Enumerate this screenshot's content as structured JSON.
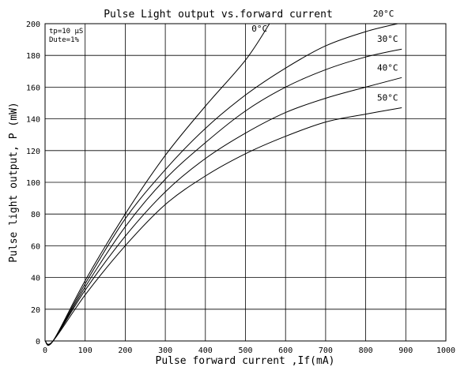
{
  "chart_data": {
    "type": "line",
    "title": "Pulse Light output vs.forward current",
    "xlabel": "Pulse forward current ,If(mA)",
    "ylabel": "Pulse light output, P (mW)",
    "xlim": [
      0,
      1000
    ],
    "ylim": [
      0,
      200
    ],
    "x_ticks": [
      0,
      100,
      200,
      300,
      400,
      500,
      600,
      700,
      800,
      900,
      1000
    ],
    "y_ticks": [
      0,
      20,
      40,
      60,
      80,
      100,
      120,
      140,
      160,
      180,
      200
    ],
    "grid": true,
    "conditions": [
      "tp=10 µS",
      "Dute=1%"
    ],
    "series": [
      {
        "name": "0°C",
        "color": "#000000",
        "x": [
          0,
          20,
          100,
          200,
          300,
          400,
          500,
          560
        ],
        "y": [
          0,
          0,
          38,
          80,
          117,
          148,
          177,
          200
        ]
      },
      {
        "name": "20°C",
        "color": "#000000",
        "x": [
          0,
          20,
          100,
          200,
          300,
          400,
          500,
          600,
          700,
          800,
          880
        ],
        "y": [
          0,
          0,
          36,
          77,
          108,
          134,
          155,
          172,
          186,
          195,
          200
        ]
      },
      {
        "name": "30°C",
        "color": "#000000",
        "x": [
          0,
          20,
          100,
          200,
          300,
          400,
          500,
          600,
          700,
          800,
          890
        ],
        "y": [
          0,
          0,
          34,
          72,
          102,
          125,
          145,
          160,
          171,
          179,
          184
        ]
      },
      {
        "name": "40°C",
        "color": "#000000",
        "x": [
          0,
          20,
          100,
          200,
          300,
          400,
          500,
          600,
          700,
          800,
          890
        ],
        "y": [
          0,
          0,
          32,
          66,
          94,
          115,
          131,
          144,
          153,
          160,
          166
        ]
      },
      {
        "name": "50°C",
        "color": "#000000",
        "x": [
          0,
          20,
          100,
          200,
          300,
          400,
          500,
          600,
          700,
          800,
          890
        ],
        "y": [
          0,
          0,
          29,
          60,
          86,
          104,
          118,
          129,
          138,
          143,
          147
        ]
      }
    ]
  }
}
